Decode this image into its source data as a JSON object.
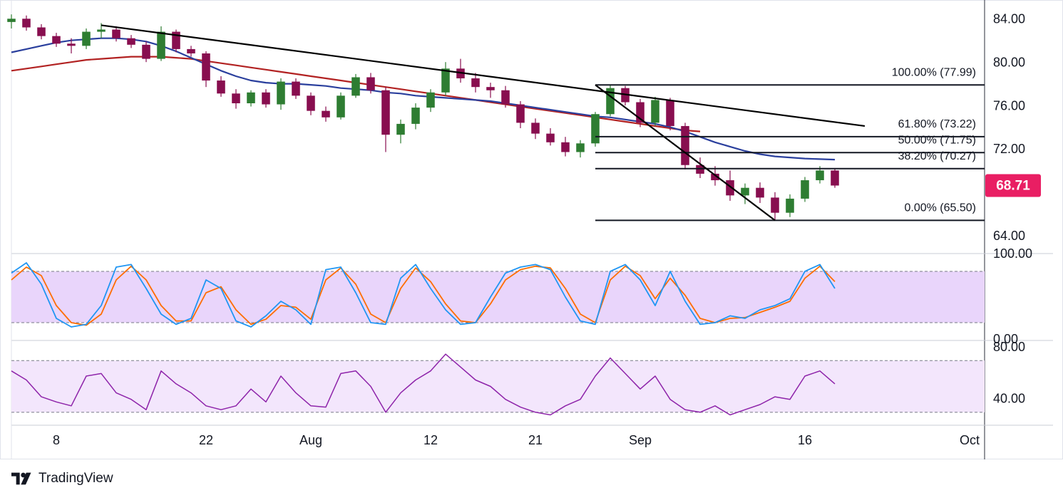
{
  "branding": {
    "name": "TradingView",
    "logo_icon": "tradingview-logo-icon"
  },
  "chart_data": {
    "type": "candlestick",
    "price_axis": {
      "ylim": [
        62.5,
        85.5
      ],
      "ticks": [
        "84.00",
        "80.00",
        "76.00",
        "72.00",
        "64.00"
      ],
      "tick_values": [
        84,
        80,
        76,
        72,
        64
      ]
    },
    "time_axis": {
      "labels": [
        "8",
        "22",
        "Aug",
        "12",
        "21",
        "Sep",
        "16",
        "Oct"
      ],
      "bar_index": [
        3,
        13,
        20,
        28,
        35,
        42,
        53,
        64
      ],
      "x_range": [
        0,
        65
      ]
    },
    "last_price": {
      "value": "68.71",
      "color": "#e91e63"
    },
    "colors": {
      "up": "#089981",
      "down": "#f23645",
      "candle_up": "#2e7d32",
      "candle_down": "#880e4f",
      "ma_fast": "#2a3f9d",
      "ma_slow": "#b22222",
      "trendline": "#000000",
      "rsi": "#8e24aa",
      "stoch_k": "#2196f3",
      "stoch_d": "#ff6d00",
      "band_fill": "#e9d5fb"
    },
    "ohlc": [
      [
        83.8,
        84.5,
        83.2,
        84.1
      ],
      [
        84.1,
        84.4,
        83.0,
        83.3
      ],
      [
        83.3,
        83.6,
        82.2,
        82.5
      ],
      [
        82.5,
        82.8,
        81.5,
        81.8
      ],
      [
        81.8,
        82.3,
        80.9,
        81.6
      ],
      [
        81.6,
        83.2,
        81.3,
        82.9
      ],
      [
        82.9,
        83.7,
        82.3,
        83.1
      ],
      [
        83.1,
        83.4,
        82.0,
        82.3
      ],
      [
        82.3,
        82.6,
        81.4,
        81.7
      ],
      [
        81.7,
        82.0,
        80.1,
        80.4
      ],
      [
        80.4,
        83.4,
        80.2,
        82.9
      ],
      [
        82.9,
        83.1,
        81.0,
        81.3
      ],
      [
        81.3,
        81.6,
        80.6,
        80.9
      ],
      [
        80.9,
        81.1,
        77.8,
        78.4
      ],
      [
        78.4,
        78.8,
        76.9,
        77.2
      ],
      [
        77.2,
        77.6,
        75.8,
        76.3
      ],
      [
        76.3,
        77.5,
        76.0,
        77.3
      ],
      [
        77.3,
        77.6,
        75.9,
        76.2
      ],
      [
        76.2,
        78.6,
        75.7,
        78.3
      ],
      [
        78.3,
        78.6,
        76.7,
        77.0
      ],
      [
        77.0,
        77.3,
        75.2,
        75.6
      ],
      [
        75.6,
        76.0,
        74.6,
        75.0
      ],
      [
        75.0,
        77.3,
        74.8,
        77.0
      ],
      [
        77.0,
        79.0,
        76.8,
        78.7
      ],
      [
        78.7,
        79.1,
        77.2,
        77.5
      ],
      [
        77.5,
        77.8,
        71.8,
        73.4
      ],
      [
        73.4,
        74.8,
        72.6,
        74.4
      ],
      [
        74.4,
        76.3,
        73.9,
        75.9
      ],
      [
        75.9,
        77.6,
        75.5,
        77.3
      ],
      [
        77.3,
        80.1,
        77.0,
        79.5
      ],
      [
        79.5,
        80.4,
        78.2,
        78.6
      ],
      [
        78.6,
        79.1,
        77.3,
        77.8
      ],
      [
        77.8,
        78.2,
        76.8,
        77.5
      ],
      [
        77.5,
        77.9,
        75.9,
        76.2
      ],
      [
        76.2,
        76.5,
        74.0,
        74.5
      ],
      [
        74.5,
        74.9,
        73.0,
        73.5
      ],
      [
        73.5,
        74.0,
        72.4,
        72.7
      ],
      [
        72.7,
        73.2,
        71.4,
        71.8
      ],
      [
        71.8,
        72.9,
        71.3,
        72.6
      ],
      [
        72.6,
        75.5,
        72.3,
        75.3
      ],
      [
        75.3,
        78.0,
        75.1,
        77.7
      ],
      [
        77.7,
        77.9,
        76.1,
        76.4
      ],
      [
        76.4,
        76.7,
        74.1,
        74.5
      ],
      [
        74.5,
        76.9,
        74.2,
        76.6
      ],
      [
        76.6,
        76.8,
        73.8,
        74.2
      ],
      [
        74.2,
        74.5,
        70.2,
        70.6
      ],
      [
        70.6,
        71.3,
        69.4,
        69.8
      ],
      [
        69.8,
        70.5,
        68.7,
        69.2
      ],
      [
        69.2,
        70.1,
        67.3,
        67.8
      ],
      [
        67.8,
        68.9,
        67.0,
        68.5
      ],
      [
        68.5,
        69.0,
        67.1,
        67.6
      ],
      [
        67.6,
        68.1,
        65.5,
        66.2
      ],
      [
        66.2,
        67.9,
        65.8,
        67.5
      ],
      [
        67.5,
        69.5,
        67.2,
        69.2
      ],
      [
        69.2,
        70.5,
        68.9,
        70.1
      ],
      [
        70.1,
        70.3,
        68.5,
        68.71
      ]
    ],
    "ma_fast": [
      81.0,
      81.3,
      81.6,
      81.9,
      82.1,
      82.2,
      82.3,
      82.3,
      82.2,
      82.0,
      81.6,
      81.1,
      80.5,
      79.9,
      79.3,
      78.8,
      78.4,
      78.2,
      78.1,
      78.1,
      78.0,
      77.9,
      77.7,
      77.6,
      77.5,
      77.3,
      77.2,
      77.0,
      76.9,
      76.8,
      76.7,
      76.6,
      76.5,
      76.3,
      76.1,
      75.9,
      75.7,
      75.5,
      75.3,
      75.1,
      75.0,
      74.8,
      74.6,
      74.4,
      74.1,
      73.7,
      73.2,
      72.7,
      72.3,
      71.9,
      71.6,
      71.4,
      71.3,
      71.2,
      71.15,
      71.1
    ],
    "ma_slow": [
      79.3,
      79.5,
      79.7,
      79.9,
      80.1,
      80.3,
      80.4,
      80.5,
      80.6,
      80.6,
      80.6,
      80.5,
      80.4,
      80.2,
      80.0,
      79.8,
      79.6,
      79.4,
      79.2,
      79.0,
      78.8,
      78.6,
      78.4,
      78.2,
      78.0,
      77.8,
      77.6,
      77.4,
      77.2,
      77.0,
      76.8,
      76.6,
      76.4,
      76.2,
      76.0,
      75.8,
      75.6,
      75.4,
      75.2,
      75.0,
      74.8,
      74.6,
      74.4,
      74.2,
      74.0,
      73.8,
      73.7
    ],
    "trendlines": [
      {
        "name": "descending-resistance",
        "from": [
          6,
          83.5
        ],
        "to": [
          57,
          74.2
        ]
      },
      {
        "name": "steep-channel-line",
        "from": [
          39,
          77.99
        ],
        "to": [
          51,
          65.5
        ]
      }
    ],
    "fibonacci": {
      "x_start": 39,
      "x_end": 65,
      "levels": [
        {
          "label": "100.00% (77.99)",
          "value": 77.99
        },
        {
          "label": "61.80% (73.22)",
          "value": 73.22
        },
        {
          "label": "50.00% (71.75)",
          "value": 71.75
        },
        {
          "label": "38.20% (70.27)",
          "value": 70.27
        },
        {
          "label": "0.00% (65.50)",
          "value": 65.5
        }
      ]
    },
    "stoch": {
      "ylim": [
        0,
        100
      ],
      "ticks": [
        "100.00",
        "0.00"
      ],
      "tick_values": [
        100,
        0
      ],
      "band": [
        80,
        20
      ],
      "k": [
        78,
        90,
        65,
        25,
        15,
        18,
        40,
        85,
        88,
        60,
        30,
        18,
        25,
        70,
        60,
        22,
        15,
        28,
        45,
        35,
        18,
        82,
        85,
        55,
        20,
        18,
        72,
        88,
        60,
        35,
        18,
        20,
        50,
        78,
        85,
        88,
        82,
        50,
        22,
        18,
        80,
        88,
        70,
        40,
        80,
        45,
        18,
        20,
        28,
        25,
        35,
        40,
        48,
        80,
        88,
        60
      ],
      "d": [
        70,
        85,
        75,
        40,
        20,
        17,
        30,
        70,
        86,
        70,
        40,
        22,
        22,
        55,
        62,
        35,
        18,
        24,
        40,
        38,
        24,
        70,
        84,
        65,
        30,
        20,
        60,
        84,
        68,
        42,
        22,
        20,
        42,
        70,
        82,
        86,
        84,
        60,
        30,
        20,
        70,
        86,
        75,
        48,
        72,
        52,
        25,
        20,
        25,
        26,
        32,
        38,
        45,
        72,
        86,
        68
      ]
    },
    "rsi": {
      "ylim": [
        20,
        85
      ],
      "ticks": [
        "80.00",
        "40.00"
      ],
      "tick_values": [
        80,
        40
      ],
      "band": [
        70,
        30
      ],
      "values": [
        62,
        55,
        42,
        38,
        35,
        58,
        60,
        45,
        40,
        32,
        62,
        52,
        45,
        35,
        32,
        35,
        48,
        38,
        58,
        45,
        35,
        34,
        60,
        62,
        50,
        30,
        45,
        55,
        62,
        75,
        65,
        55,
        50,
        40,
        34,
        30,
        28,
        35,
        40,
        58,
        72,
        60,
        48,
        58,
        40,
        32,
        30,
        35,
        28,
        32,
        36,
        42,
        40,
        58,
        62,
        52
      ]
    }
  }
}
